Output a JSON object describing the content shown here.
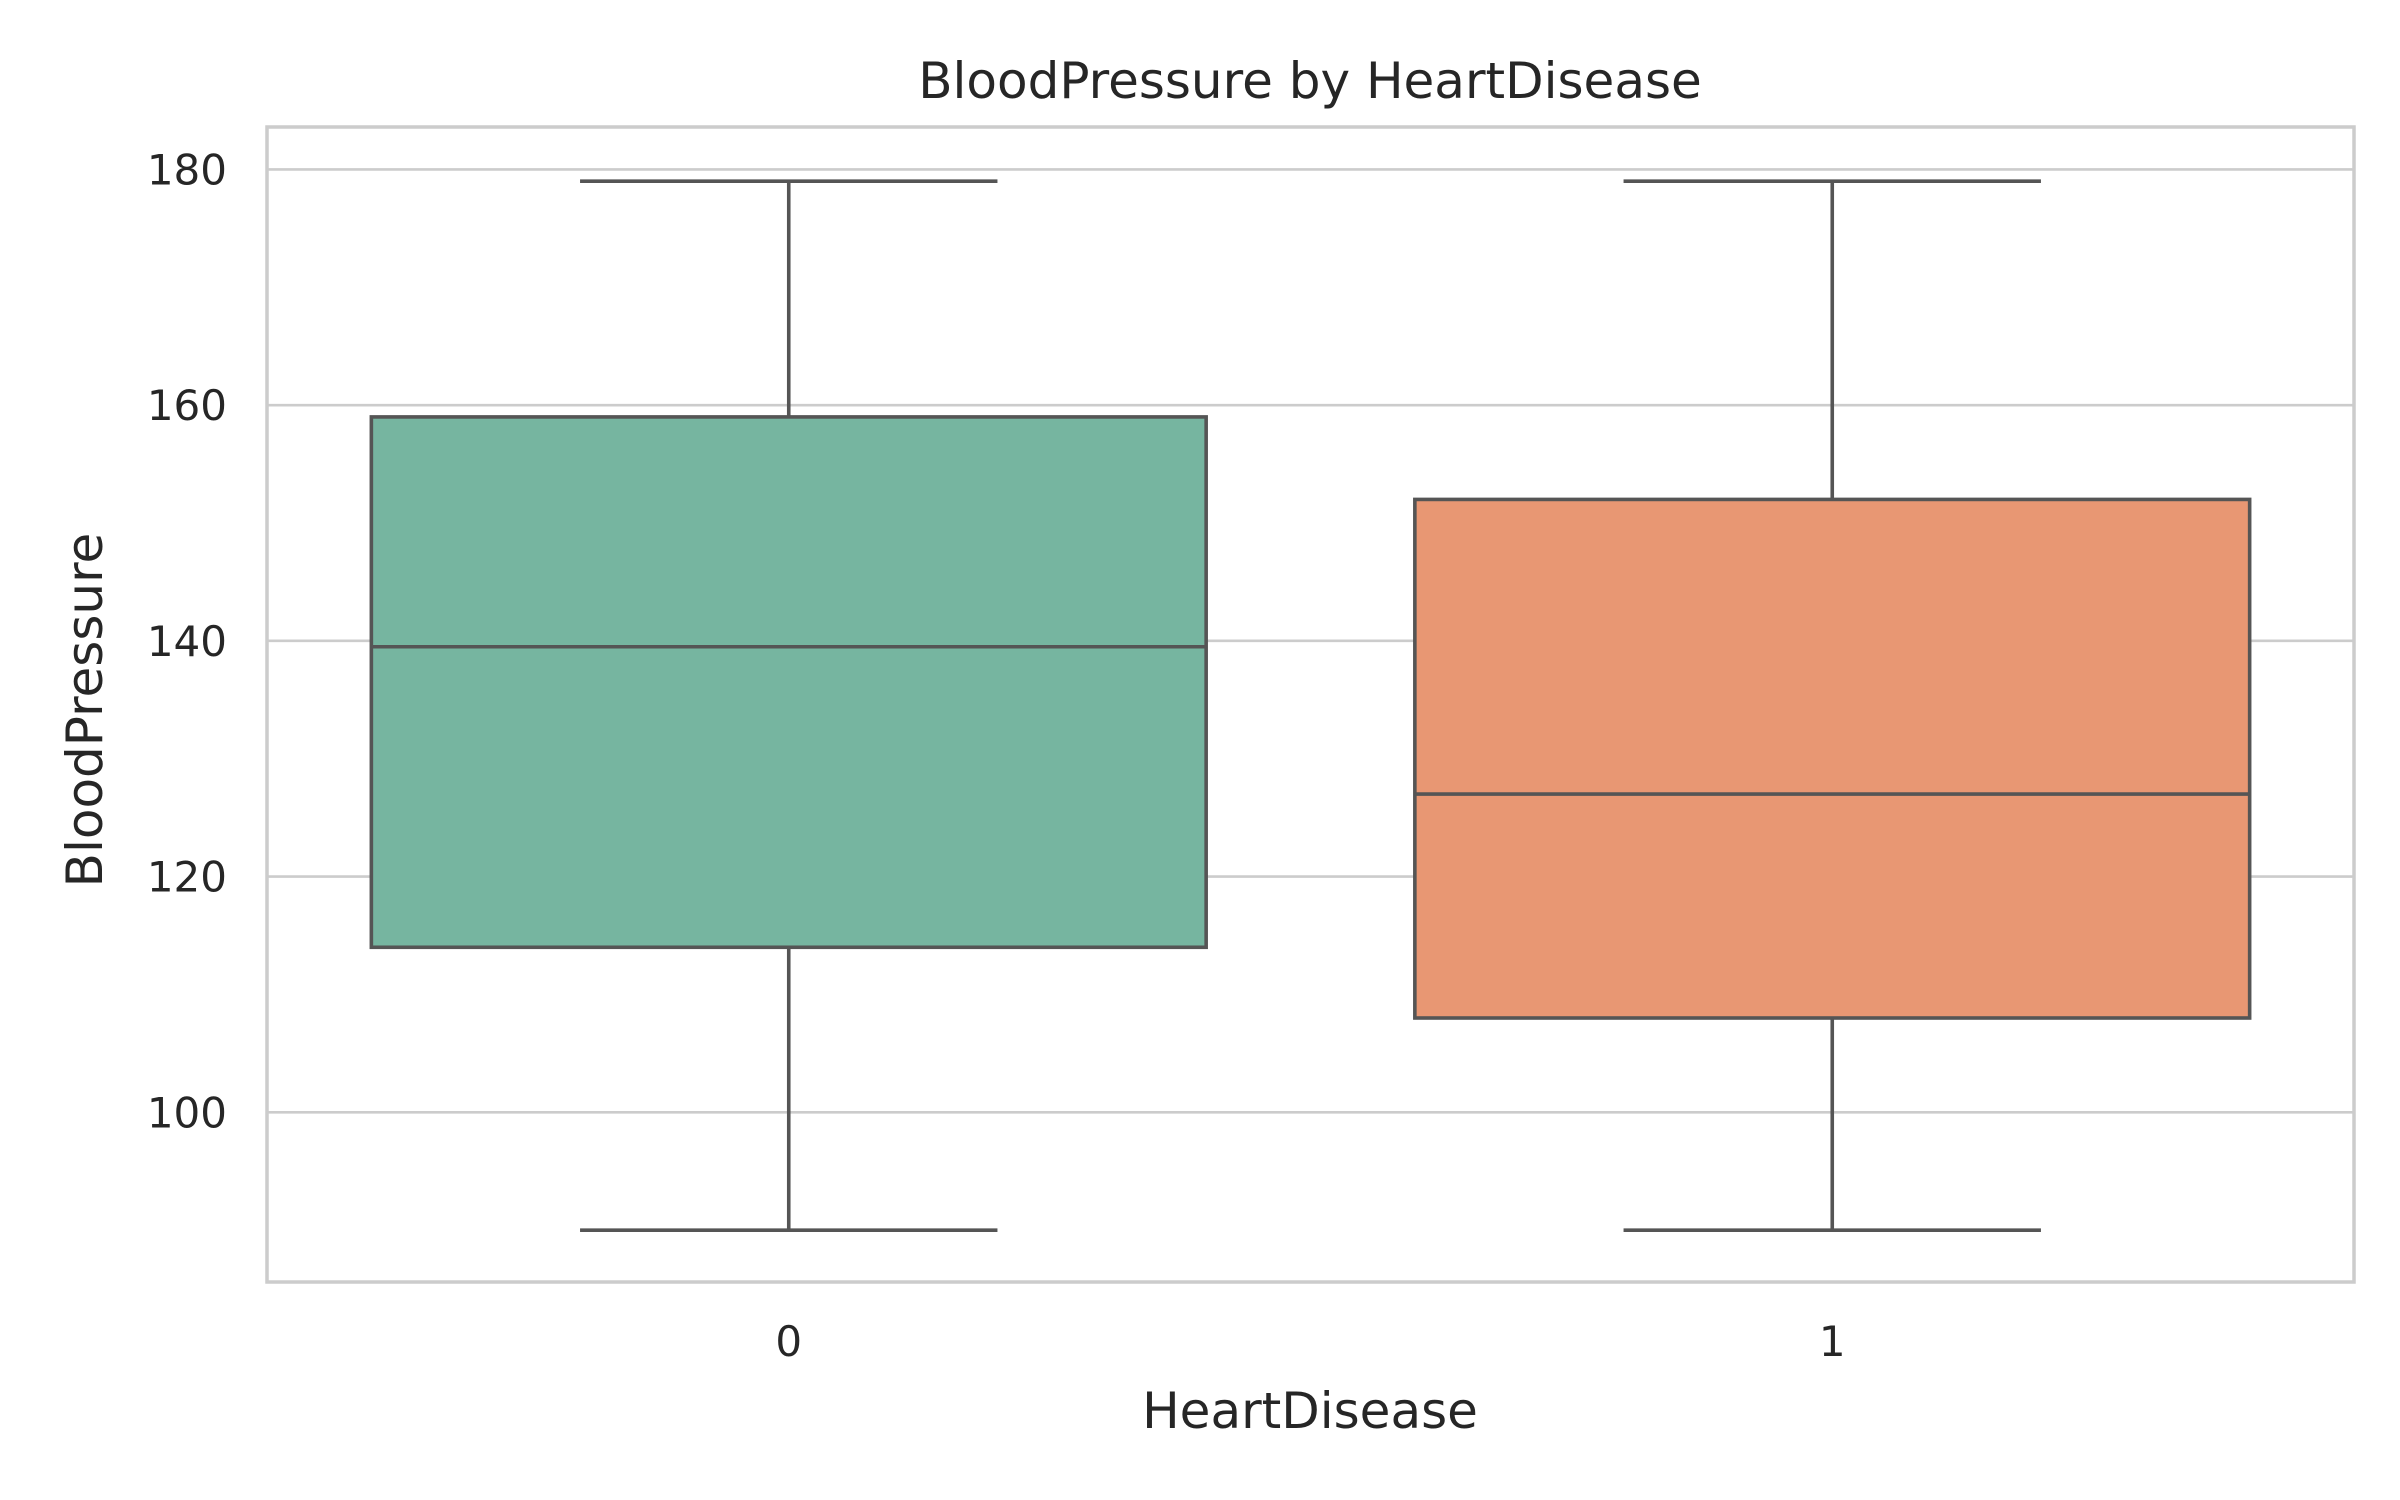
{
  "chart_data": {
    "type": "box",
    "title": "BloodPressure by HeartDisease",
    "xlabel": "HeartDisease",
    "ylabel": "BloodPressure",
    "ylim": [
      85.6,
      183.6
    ],
    "yticks": [
      100,
      120,
      140,
      160,
      180
    ],
    "grid": true,
    "categories": [
      "0",
      "1"
    ],
    "boxes": [
      {
        "category": "0",
        "whisker_low": 90,
        "q1": 114,
        "median": 139.5,
        "q3": 159,
        "whisker_high": 179,
        "color": "#76b5a0"
      },
      {
        "category": "1",
        "whisker_low": 90,
        "q1": 108,
        "median": 127,
        "q3": 152,
        "whisker_high": 179,
        "color": "#e89773"
      }
    ]
  }
}
